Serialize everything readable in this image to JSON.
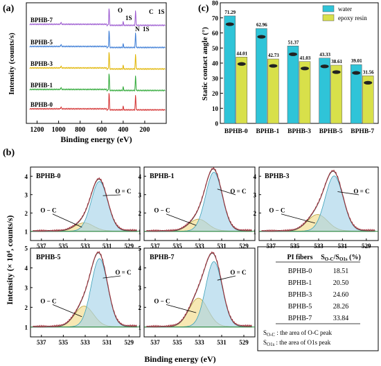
{
  "panel_labels": {
    "a": "(a)",
    "b": "(b)",
    "c": "(c)"
  },
  "panel_a": {
    "xlabel": "Binding energy (eV)",
    "ylabel": "Intensity (counts/s)",
    "xticks": [
      "1200",
      "1000",
      "800",
      "600",
      "400",
      "200"
    ],
    "peak_labels": {
      "o": "O",
      "o1s": "1S",
      "n": "N",
      "n1s": "1S",
      "c": "C",
      "c1s": "1S"
    },
    "samples": [
      {
        "name": "BPHB-7",
        "color": "#9b59d0"
      },
      {
        "name": "BPHB-5",
        "color": "#3a7bd5"
      },
      {
        "name": "BPHB-3",
        "color": "#e0b400"
      },
      {
        "name": "BPHB-1",
        "color": "#2ea836"
      },
      {
        "name": "BPHB-0",
        "color": "#d32f2f"
      }
    ]
  },
  "chart_data": [
    {
      "type": "bar",
      "title": "",
      "xlabel": "",
      "ylabel": "Static contact angle (°)",
      "ylim": [
        0,
        80
      ],
      "yticks": [
        "0",
        "10",
        "20",
        "30",
        "40",
        "50",
        "60",
        "70",
        "80"
      ],
      "categories": [
        "BPHB-0",
        "BPHB-1",
        "BPHB-3",
        "BPHB-5",
        "BPHB-7"
      ],
      "legend_position": "top-right",
      "series": [
        {
          "name": "water",
          "color": "#2fc4d8",
          "values": [
            71.29,
            62.96,
            51.37,
            43.33,
            39.01
          ],
          "labels": [
            "71.29",
            "62.96",
            "51.37",
            "43.33",
            "39.01"
          ]
        },
        {
          "name": "epoxy resin",
          "color": "#d8e04a",
          "values": [
            44.01,
            42.73,
            41.03,
            38.61,
            31.56
          ],
          "labels": [
            "44.01",
            "42.73",
            "41.03",
            "38.61",
            "31.56"
          ]
        }
      ]
    },
    {
      "type": "table",
      "headers": [
        "PI fibers",
        "S<sub>O-C</sub>/S<sub>O1s</sub> (%)"
      ],
      "header_plain": [
        "PI fibers",
        "SO-C/SO1s (%)"
      ],
      "rows": [
        [
          "BPHB-0",
          "18.51"
        ],
        [
          "BPHB-1",
          "20.50"
        ],
        [
          "BPHB-3",
          "24.60"
        ],
        [
          "BPHB-5",
          "28.26"
        ],
        [
          "BPHB-7",
          "33.84"
        ]
      ],
      "notes": [
        "SO-C : the area of O-C peak",
        "SO1s : the area of O1s peak"
      ]
    }
  ],
  "panel_b": {
    "xlabel": "Binding energy (eV)",
    "ylabel": "Intensity (× 10⁴, counts/s)",
    "xticks": [
      "537",
      "535",
      "533",
      "531",
      "529"
    ],
    "peak_oc": "O = C",
    "peak_co": "O − C",
    "spectra": [
      {
        "name": "BPHB-0",
        "yticks": [
          "1",
          "2",
          "3",
          "4"
        ],
        "ymax": 4.5,
        "oc_amp": 2.7,
        "co_amp": 0.45
      },
      {
        "name": "BPHB-1",
        "yticks": [
          "1",
          "2",
          "3",
          "4"
        ],
        "ymax": 4.5,
        "oc_amp": 3.2,
        "co_amp": 0.65
      },
      {
        "name": "BPHB-3",
        "yticks": [
          "1",
          "2",
          "3",
          "4"
        ],
        "ymax": 4.5,
        "oc_amp": 3.0,
        "co_amp": 0.9
      },
      {
        "name": "BPHB-5",
        "yticks": [
          "1",
          "2",
          "3",
          "4",
          "5"
        ],
        "ymax": 5.0,
        "oc_amp": 3.45,
        "co_amp": 1.05
      },
      {
        "name": "BPHB-7",
        "yticks": [
          "1",
          "2",
          "3",
          "4",
          "5"
        ],
        "ymax": 5.0,
        "oc_amp": 3.3,
        "co_amp": 1.45
      }
    ]
  }
}
